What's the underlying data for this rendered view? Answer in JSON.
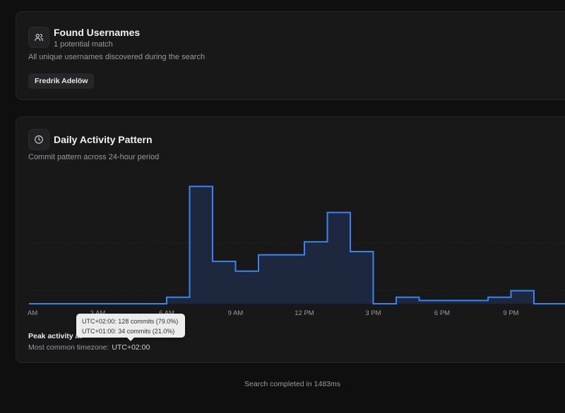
{
  "usernames": {
    "title": "Found Usernames",
    "count_text": "1 potential match",
    "description": "All unique usernames discovered during the search",
    "items": [
      "Fredrik Adelöw"
    ],
    "icon": "users-icon"
  },
  "activity": {
    "title": "Daily Activity Pattern",
    "description": "Commit pattern across 24-hour period",
    "icon": "clock-icon",
    "peak_label": "Peak activity at",
    "timezone_label": "Most common timezone:",
    "timezone_value": "UTC+02:00",
    "tooltip": [
      "UTC+02:00: 128 commits (79.0%)",
      "UTC+01:00: 34 commits (21.0%)"
    ],
    "accent": "#3b82f6"
  },
  "chart_data": {
    "type": "area",
    "x": [
      0,
      1,
      2,
      3,
      4,
      5,
      6,
      7,
      8,
      9,
      10,
      11,
      12,
      13,
      14,
      15,
      16,
      17,
      18,
      19,
      20,
      21,
      22,
      23
    ],
    "values": [
      0,
      0,
      0,
      0,
      0,
      0,
      1,
      18,
      6.5,
      5,
      7.5,
      7.5,
      9.5,
      14,
      8,
      0,
      1,
      0.5,
      0.5,
      0.5,
      1,
      2,
      0,
      0
    ],
    "tick_labels": [
      "AM",
      "3 AM",
      "6 AM",
      "9 AM",
      "12 PM",
      "3 PM",
      "6 PM",
      "9 PM"
    ],
    "tick_hours": [
      0,
      3,
      6,
      9,
      12,
      15,
      18,
      21
    ],
    "step": true,
    "grid": true,
    "ylim": [
      0,
      20
    ]
  },
  "footer": "Search completed in 1483ms"
}
